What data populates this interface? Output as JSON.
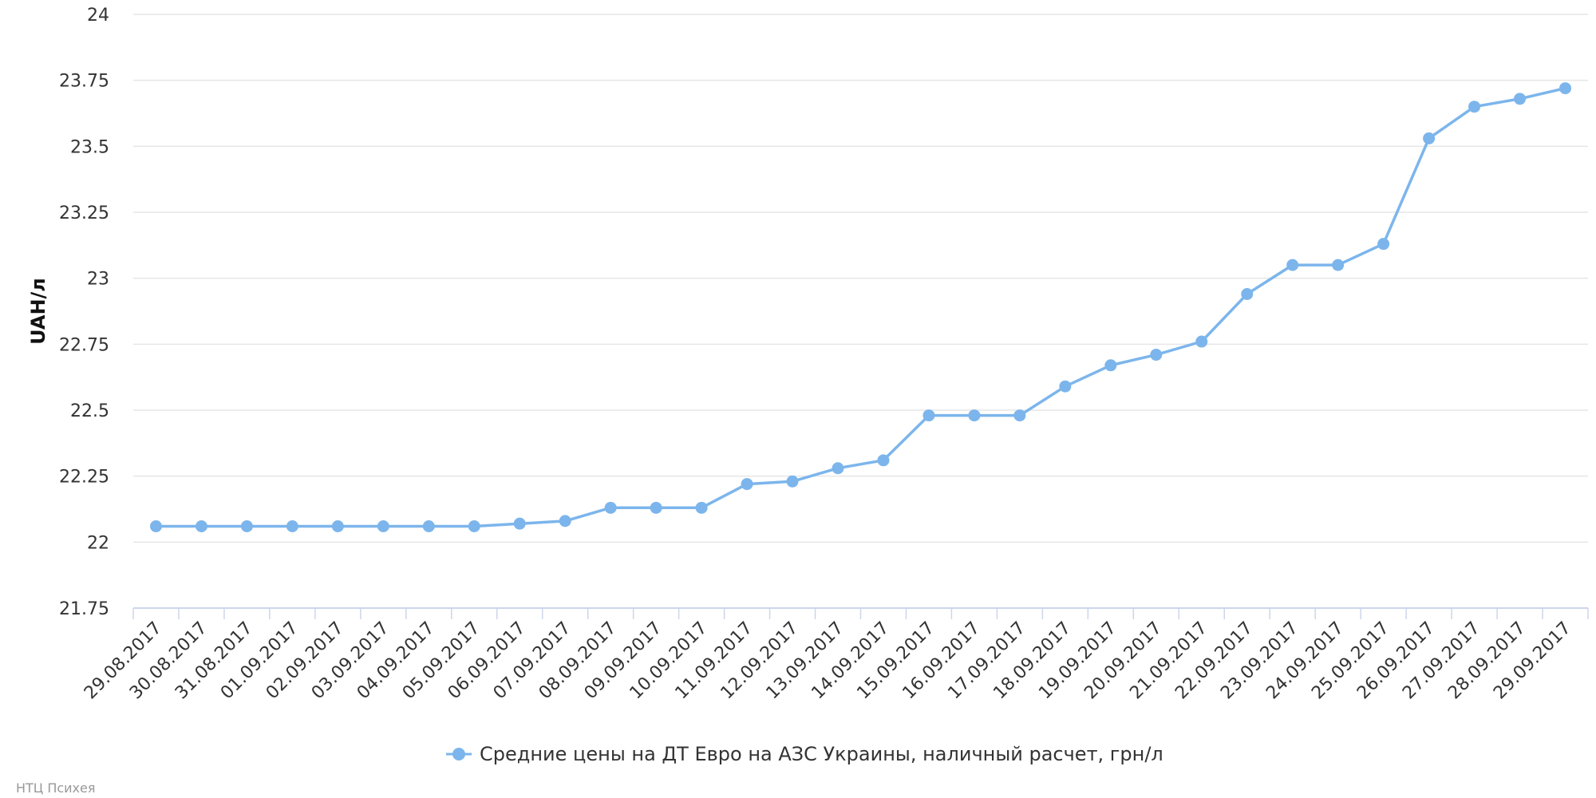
{
  "chart_data": {
    "type": "line",
    "title": "",
    "xlabel": "",
    "ylabel": "UAH/л",
    "ylim": [
      21.75,
      24
    ],
    "yticks": [
      21.75,
      22,
      22.25,
      22.5,
      22.75,
      23,
      23.25,
      23.5,
      23.75,
      24
    ],
    "ytick_labels": [
      "21.75",
      "22",
      "22.25",
      "22.5",
      "22.75",
      "23",
      "23.25",
      "23.5",
      "23.75",
      "24"
    ],
    "grid": true,
    "legend_position": "bottom-center",
    "categories": [
      "29.08.2017",
      "30.08.2017",
      "31.08.2017",
      "01.09.2017",
      "02.09.2017",
      "03.09.2017",
      "04.09.2017",
      "05.09.2017",
      "06.09.2017",
      "07.09.2017",
      "08.09.2017",
      "09.09.2017",
      "10.09.2017",
      "11.09.2017",
      "12.09.2017",
      "13.09.2017",
      "14.09.2017",
      "15.09.2017",
      "16.09.2017",
      "17.09.2017",
      "18.09.2017",
      "19.09.2017",
      "20.09.2017",
      "21.09.2017",
      "22.09.2017",
      "23.09.2017",
      "24.09.2017",
      "25.09.2017",
      "26.09.2017",
      "27.09.2017",
      "28.09.2017",
      "29.09.2017"
    ],
    "series": [
      {
        "name": "Средние цены на ДТ Евро на АЗС Украины, наличный расчет, грн/л",
        "color": "#7cb5ec",
        "values": [
          22.06,
          22.06,
          22.06,
          22.06,
          22.06,
          22.06,
          22.06,
          22.06,
          22.07,
          22.08,
          22.13,
          22.13,
          22.13,
          22.22,
          22.23,
          22.28,
          22.31,
          22.48,
          22.48,
          22.48,
          22.59,
          22.67,
          22.71,
          22.76,
          22.94,
          23.05,
          23.05,
          23.13,
          23.53,
          23.65,
          23.68,
          23.72
        ]
      }
    ]
  },
  "credits": "НТЦ Психея",
  "colors": {
    "grid": "#e6e6e6",
    "axis": "#ccd6eb",
    "series": "#7cb5ec"
  }
}
